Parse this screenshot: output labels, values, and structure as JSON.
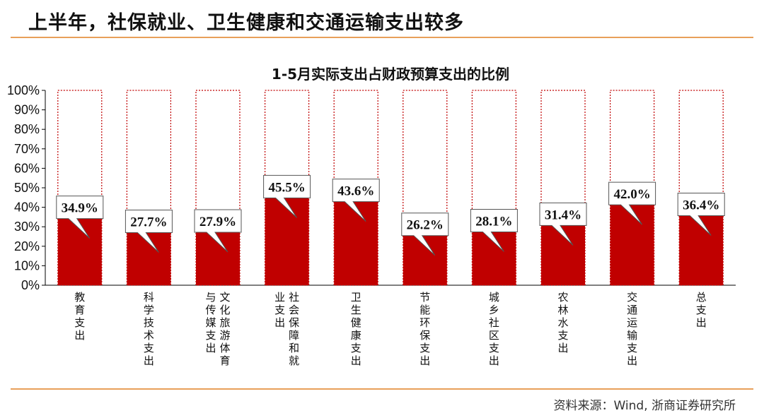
{
  "page_title": "上半年，社保就业、卫生健康和交通运输支出较多",
  "source": "资料来源：Wind, 浙商证券研究所",
  "colors": {
    "bar": "#c00000",
    "accent_rule": "#e8a05a"
  },
  "chart_data": {
    "type": "bar",
    "title": "1-5月实际支出占财政预算支出的比例",
    "xlabel": "",
    "ylabel": "",
    "ylim": [
      0,
      100
    ],
    "yticks": [
      "0%",
      "10%",
      "20%",
      "30%",
      "40%",
      "50%",
      "60%",
      "70%",
      "80%",
      "90%",
      "100%"
    ],
    "categories": [
      "教育支出",
      "科学技术支出",
      "文化旅游体育与传媒支出",
      "社会保障和就业支出",
      "卫生健康支出",
      "节能环保支出",
      "城乡社区支出",
      "农林水支出",
      "交通运输支出",
      "总支出"
    ],
    "category_columns": [
      [
        "教育支出"
      ],
      [
        "科学技术支出"
      ],
      [
        "文化旅游体育",
        "与传媒支出"
      ],
      [
        "社会保障和就",
        "业支出"
      ],
      [
        "卫生健康支出"
      ],
      [
        "节能环保支出"
      ],
      [
        "城乡社区支出"
      ],
      [
        "农林水支出"
      ],
      [
        "交通运输支出"
      ],
      [
        "总支出"
      ]
    ],
    "values": [
      34.9,
      27.7,
      27.9,
      45.5,
      43.6,
      26.2,
      28.1,
      31.4,
      42.0,
      36.4
    ],
    "data_labels": [
      "34.9%",
      "27.7%",
      "27.9%",
      "45.5%",
      "43.6%",
      "26.2%",
      "28.1%",
      "31.4%",
      "42.0%",
      "36.4%"
    ]
  }
}
